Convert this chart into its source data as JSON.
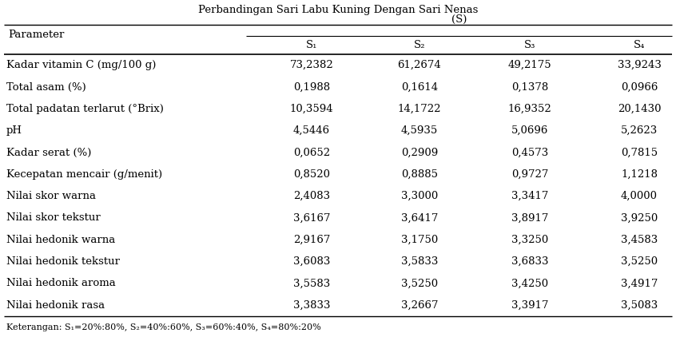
{
  "title_top": "Perbandingan Sari Labu Kuning Dengan Sari Nenas",
  "title_sub": "(S)",
  "col_header_param": "Parameter",
  "col_headers": [
    "S₁",
    "S₂",
    "S₃",
    "S₄"
  ],
  "row_labels": [
    "Kadar vitamin C (mg/100 g)",
    "Total asam (%)",
    "Total padatan terlarut (°Brix)",
    "pH",
    "Kadar serat (%)",
    "Kecepatan mencair (g/menit)",
    "Nilai skor warna",
    "Nilai skor tekstur",
    "Nilai hedonik warna",
    "Nilai hedonik tekstur",
    "Nilai hedonik aroma",
    "Nilai hedonik rasa"
  ],
  "data": [
    [
      "73,2382",
      "61,2674",
      "49,2175",
      "33,9243"
    ],
    [
      "0,1988",
      "0,1614",
      "0,1378",
      "0,0966"
    ],
    [
      "10,3594",
      "14,1722",
      "16,9352",
      "20,1430"
    ],
    [
      "4,5446",
      "4,5935",
      "5,0696",
      "5,2623"
    ],
    [
      "0,0652",
      "0,2909",
      "0,4573",
      "0,7815"
    ],
    [
      "0,8520",
      "0,8885",
      "0,9727",
      "1,1218"
    ],
    [
      "2,4083",
      "3,3000",
      "3,3417",
      "4,0000"
    ],
    [
      "3,6167",
      "3,6417",
      "3,8917",
      "3,9250"
    ],
    [
      "2,9167",
      "3,1750",
      "3,3250",
      "3,4583"
    ],
    [
      "3,6083",
      "3,5833",
      "3,6833",
      "3,5250"
    ],
    [
      "3,5583",
      "3,5250",
      "3,4250",
      "3,4917"
    ],
    [
      "3,3833",
      "3,2667",
      "3,3917",
      "3,5083"
    ]
  ],
  "footnote": "Keterangan: S₁=20%:80%, S₂=40%:60%, S₃=60%:40%, S₄=80%:20%",
  "bg_color": "#ffffff",
  "text_color": "#000000",
  "font_size": 9.5,
  "fig_width": 8.46,
  "fig_height": 4.22,
  "dpi": 100
}
